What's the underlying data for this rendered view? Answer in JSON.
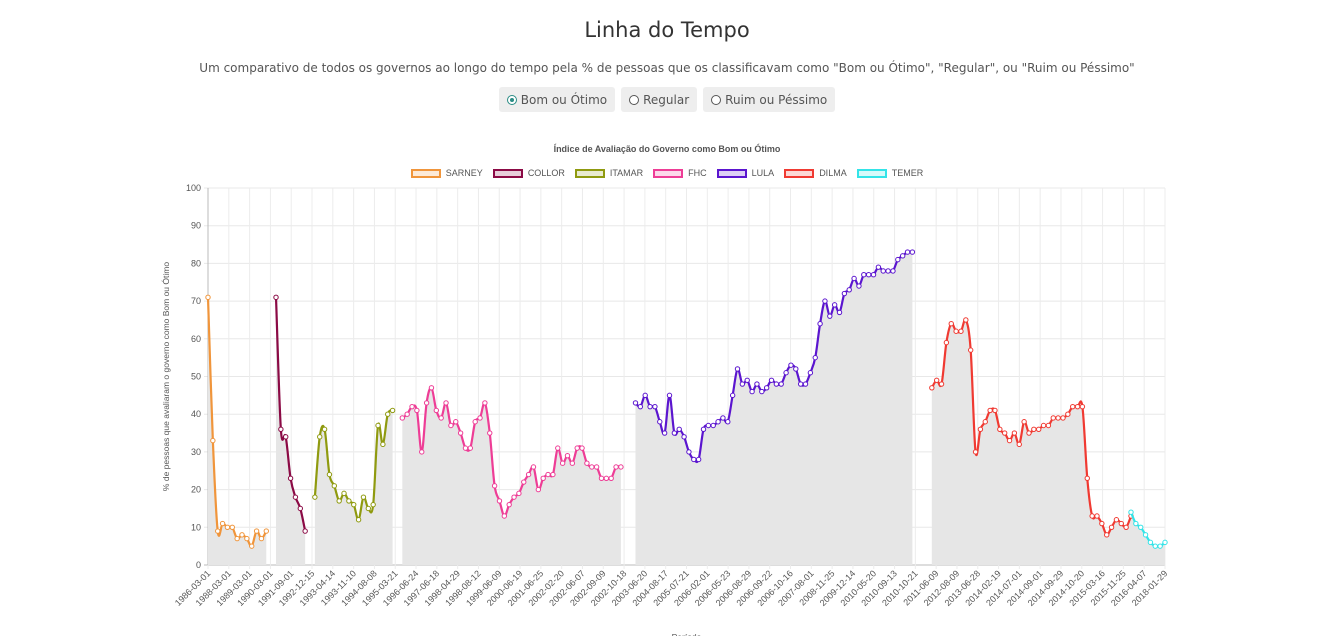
{
  "header": {
    "title": "Linha do Tempo",
    "subtitle": "Um comparativo de todos os governos ao longo do tempo pela % de pessoas que os classificavam como \"Bom ou Ótimo\", \"Regular\", ou \"Ruim ou Péssimo\""
  },
  "toggles": [
    {
      "label": "Bom ou Ótimo",
      "selected": true
    },
    {
      "label": "Regular",
      "selected": false
    },
    {
      "label": "Ruim ou Péssimo",
      "selected": false
    }
  ],
  "chart_data": {
    "type": "line",
    "title": "Índice de Avaliação do Governo como Bom ou Ótimo",
    "xlabel": "Período",
    "ylabel": "% de pessoas que avaliaram o governo como Bom ou Ótimo",
    "ylim": [
      0,
      100
    ],
    "yticks": [
      0,
      10,
      20,
      30,
      40,
      50,
      60,
      70,
      80,
      90,
      100
    ],
    "grid": true,
    "legend_position": "top",
    "area_fill": "#e6e6e6",
    "x_tick_labels": [
      "1986-03-01",
      "1988-03-01",
      "1989-03-01",
      "1990-03-01",
      "1991-09-01",
      "1992-12-15",
      "1993-04-14",
      "1993-11-10",
      "1994-08-08",
      "1995-03-21",
      "1996-06-24",
      "1997-06-18",
      "1998-04-29",
      "1998-08-12",
      "1999-06-09",
      "2000-06-19",
      "2001-06-25",
      "2002-02-20",
      "2002-06-07",
      "2002-09-09",
      "2002-10-18",
      "2003-06-20",
      "2004-08-17",
      "2005-07-21",
      "2006-02-01",
      "2006-05-23",
      "2006-08-29",
      "2006-09-22",
      "2006-10-16",
      "2007-08-01",
      "2008-11-25",
      "2009-12-14",
      "2010-05-20",
      "2010-09-13",
      "2010-10-21",
      "2011-06-09",
      "2012-08-09",
      "2013-06-28",
      "2014-02-19",
      "2014-07-01",
      "2014-09-01",
      "2014-09-29",
      "2014-10-20",
      "2015-03-16",
      "2015-11-25",
      "2016-04-07",
      "2018-01-29"
    ],
    "series": [
      {
        "name": "SARNEY",
        "color": "#f0953b",
        "x_start": 0,
        "values": [
          71,
          33,
          9,
          11,
          10,
          10,
          7,
          8,
          7,
          5,
          9,
          7,
          9
        ]
      },
      {
        "name": "COLLOR",
        "color": "#8b0a45",
        "x_start": 14,
        "values": [
          71,
          36,
          34,
          23,
          18,
          15,
          9
        ]
      },
      {
        "name": "ITAMAR",
        "color": "#8f9a0f",
        "x_start": 22,
        "values": [
          18,
          34,
          36,
          24,
          21,
          17,
          19,
          17,
          16,
          12,
          18,
          15,
          16,
          37,
          32,
          40,
          41
        ]
      },
      {
        "name": "FHC",
        "color": "#ee3d96",
        "x_start": 40,
        "values": [
          39,
          40,
          42,
          41,
          30,
          43,
          47,
          41,
          39,
          43,
          37,
          38,
          35,
          31,
          31,
          38,
          39,
          43,
          35,
          21,
          17,
          13,
          16,
          18,
          19,
          22,
          24,
          26,
          20,
          23,
          24,
          24,
          31,
          27,
          29,
          27,
          31,
          31,
          27,
          26,
          26,
          23,
          23,
          23,
          26,
          26
        ]
      },
      {
        "name": "LULA",
        "color": "#5b15cf",
        "x_start": 88,
        "values": [
          43,
          42,
          45,
          42,
          42,
          38,
          35,
          45,
          35,
          36,
          34,
          30,
          28,
          28,
          36,
          37,
          37,
          38,
          39,
          38,
          45,
          52,
          48,
          49,
          46,
          48,
          46,
          47,
          49,
          48,
          48,
          51,
          53,
          52,
          48,
          48,
          51,
          55,
          64,
          70,
          66,
          69,
          67,
          72,
          73,
          76,
          74,
          77,
          77,
          77,
          79,
          78,
          78,
          78,
          81,
          82,
          83,
          83
        ]
      },
      {
        "name": "DILMA",
        "color": "#f03a32",
        "x_start": 149,
        "values": [
          47,
          49,
          48,
          59,
          64,
          62,
          62,
          65,
          57,
          30,
          36,
          38,
          41,
          41,
          36,
          35,
          33,
          35,
          32,
          38,
          35,
          36,
          36,
          37,
          37,
          39,
          39,
          39,
          40,
          42,
          42,
          42,
          23,
          13,
          13,
          11,
          8,
          10,
          12,
          11,
          10,
          13
        ]
      },
      {
        "name": "TEMER",
        "color": "#33e4e8",
        "x_start": 190,
        "values": [
          14,
          11,
          10,
          8,
          6,
          5,
          5,
          6
        ]
      }
    ]
  }
}
